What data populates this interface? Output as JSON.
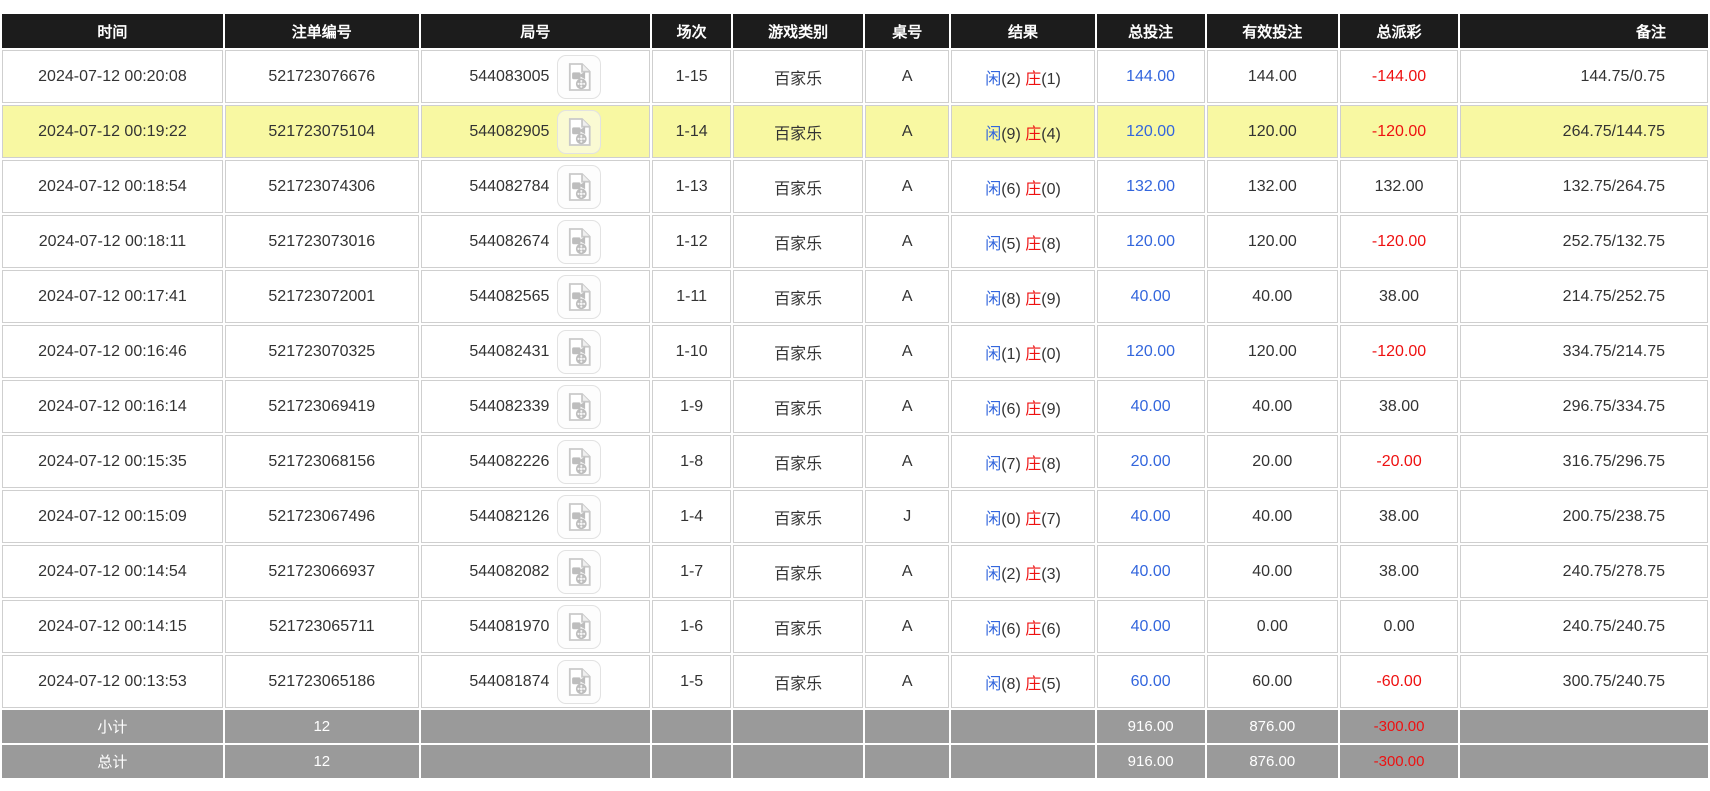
{
  "colors": {
    "header_bg": "#1c1c1c",
    "accent_blue": "#3366dd",
    "accent_red": "#ee1111",
    "highlight_yellow": "#f8f8a2",
    "summary_gray": "#9a9a9a",
    "border_gray": "#cfcfcf"
  },
  "icons": {
    "round_video": "video-replay-icon"
  },
  "table": {
    "columns": [
      {
        "key": "time",
        "label": "时间",
        "width": "13.1%"
      },
      {
        "key": "bet_id",
        "label": "注单编号",
        "width": "11.5%"
      },
      {
        "key": "round_id",
        "label": "局号",
        "width": "13.6%"
      },
      {
        "key": "session",
        "label": "场次",
        "width": "4.7%"
      },
      {
        "key": "game_type",
        "label": "游戏类别",
        "width": "7.7%"
      },
      {
        "key": "table_no",
        "label": "桌号",
        "width": "5.0%"
      },
      {
        "key": "result",
        "label": "结果",
        "width": "8.5%"
      },
      {
        "key": "total_bet",
        "label": "总投注",
        "width": "6.4%"
      },
      {
        "key": "valid_bet",
        "label": "有效投注",
        "width": "7.8%"
      },
      {
        "key": "payout",
        "label": "总派彩",
        "width": "7.0%"
      },
      {
        "key": "remark",
        "label": "备注",
        "width": "14.7%"
      }
    ],
    "rows": [
      {
        "time": "2024-07-12 00:20:08",
        "bet_id": "521723076676",
        "round_id": "544083005",
        "session": "1-15",
        "game_type": "百家乐",
        "table_no": "A",
        "result": {
          "player": "闲",
          "player_pts": "(2)",
          "banker": "庄",
          "banker_pts": "(1)"
        },
        "total_bet": "144.00",
        "valid_bet": "144.00",
        "payout": "-144.00",
        "remark": "144.75/0.75",
        "highlighted": false
      },
      {
        "time": "2024-07-12 00:19:22",
        "bet_id": "521723075104",
        "round_id": "544082905",
        "session": "1-14",
        "game_type": "百家乐",
        "table_no": "A",
        "result": {
          "player": "闲",
          "player_pts": "(9)",
          "banker": "庄",
          "banker_pts": "(4)"
        },
        "total_bet": "120.00",
        "valid_bet": "120.00",
        "payout": "-120.00",
        "remark": "264.75/144.75",
        "highlighted": true
      },
      {
        "time": "2024-07-12 00:18:54",
        "bet_id": "521723074306",
        "round_id": "544082784",
        "session": "1-13",
        "game_type": "百家乐",
        "table_no": "A",
        "result": {
          "player": "闲",
          "player_pts": "(6)",
          "banker": "庄",
          "banker_pts": "(0)"
        },
        "total_bet": "132.00",
        "valid_bet": "132.00",
        "payout": "132.00",
        "remark": "132.75/264.75",
        "highlighted": false
      },
      {
        "time": "2024-07-12 00:18:11",
        "bet_id": "521723073016",
        "round_id": "544082674",
        "session": "1-12",
        "game_type": "百家乐",
        "table_no": "A",
        "result": {
          "player": "闲",
          "player_pts": "(5)",
          "banker": "庄",
          "banker_pts": "(8)"
        },
        "total_bet": "120.00",
        "valid_bet": "120.00",
        "payout": "-120.00",
        "remark": "252.75/132.75",
        "highlighted": false
      },
      {
        "time": "2024-07-12 00:17:41",
        "bet_id": "521723072001",
        "round_id": "544082565",
        "session": "1-11",
        "game_type": "百家乐",
        "table_no": "A",
        "result": {
          "player": "闲",
          "player_pts": "(8)",
          "banker": "庄",
          "banker_pts": "(9)"
        },
        "total_bet": "40.00",
        "valid_bet": "40.00",
        "payout": "38.00",
        "remark": "214.75/252.75",
        "highlighted": false
      },
      {
        "time": "2024-07-12 00:16:46",
        "bet_id": "521723070325",
        "round_id": "544082431",
        "session": "1-10",
        "game_type": "百家乐",
        "table_no": "A",
        "result": {
          "player": "闲",
          "player_pts": "(1)",
          "banker": "庄",
          "banker_pts": "(0)"
        },
        "total_bet": "120.00",
        "valid_bet": "120.00",
        "payout": "-120.00",
        "remark": "334.75/214.75",
        "highlighted": false
      },
      {
        "time": "2024-07-12 00:16:14",
        "bet_id": "521723069419",
        "round_id": "544082339",
        "session": "1-9",
        "game_type": "百家乐",
        "table_no": "A",
        "result": {
          "player": "闲",
          "player_pts": "(6)",
          "banker": "庄",
          "banker_pts": "(9)"
        },
        "total_bet": "40.00",
        "valid_bet": "40.00",
        "payout": "38.00",
        "remark": "296.75/334.75",
        "highlighted": false
      },
      {
        "time": "2024-07-12 00:15:35",
        "bet_id": "521723068156",
        "round_id": "544082226",
        "session": "1-8",
        "game_type": "百家乐",
        "table_no": "A",
        "result": {
          "player": "闲",
          "player_pts": "(7)",
          "banker": "庄",
          "banker_pts": "(8)"
        },
        "total_bet": "20.00",
        "valid_bet": "20.00",
        "payout": "-20.00",
        "remark": "316.75/296.75",
        "highlighted": false
      },
      {
        "time": "2024-07-12 00:15:09",
        "bet_id": "521723067496",
        "round_id": "544082126",
        "session": "1-4",
        "game_type": "百家乐",
        "table_no": "J",
        "result": {
          "player": "闲",
          "player_pts": "(0)",
          "banker": "庄",
          "banker_pts": "(7)"
        },
        "total_bet": "40.00",
        "valid_bet": "40.00",
        "payout": "38.00",
        "remark": "200.75/238.75",
        "highlighted": false
      },
      {
        "time": "2024-07-12 00:14:54",
        "bet_id": "521723066937",
        "round_id": "544082082",
        "session": "1-7",
        "game_type": "百家乐",
        "table_no": "A",
        "result": {
          "player": "闲",
          "player_pts": "(2)",
          "banker": "庄",
          "banker_pts": "(3)"
        },
        "total_bet": "40.00",
        "valid_bet": "40.00",
        "payout": "38.00",
        "remark": "240.75/278.75",
        "highlighted": false
      },
      {
        "time": "2024-07-12 00:14:15",
        "bet_id": "521723065711",
        "round_id": "544081970",
        "session": "1-6",
        "game_type": "百家乐",
        "table_no": "A",
        "result": {
          "player": "闲",
          "player_pts": "(6)",
          "banker": "庄",
          "banker_pts": "(6)"
        },
        "total_bet": "40.00",
        "valid_bet": "0.00",
        "payout": "0.00",
        "remark": "240.75/240.75",
        "highlighted": false
      },
      {
        "time": "2024-07-12 00:13:53",
        "bet_id": "521723065186",
        "round_id": "544081874",
        "session": "1-5",
        "game_type": "百家乐",
        "table_no": "A",
        "result": {
          "player": "闲",
          "player_pts": "(8)",
          "banker": "庄",
          "banker_pts": "(5)"
        },
        "total_bet": "60.00",
        "valid_bet": "60.00",
        "payout": "-60.00",
        "remark": "300.75/240.75",
        "highlighted": false
      }
    ],
    "subtotal": {
      "label": "小计",
      "count": "12",
      "total_bet": "916.00",
      "valid_bet": "876.00",
      "payout": "-300.00"
    },
    "grand_total": {
      "label": "总计",
      "count": "12",
      "total_bet": "916.00",
      "valid_bet": "876.00",
      "payout": "-300.00"
    }
  }
}
